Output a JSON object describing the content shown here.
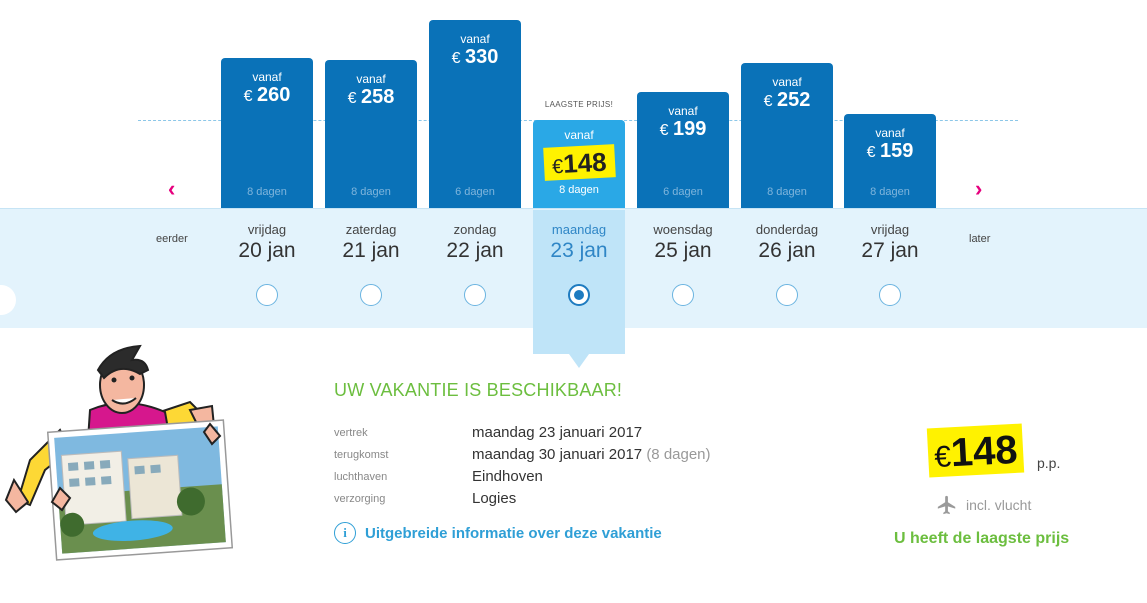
{
  "calendar": {
    "earlier_label": "eerder",
    "later_label": "later",
    "lowest_price_label": "LAAGSTE PRIJS!",
    "currency_symbol": "€",
    "days": [
      {
        "weekday": "vrijdag",
        "date": "20 jan",
        "vanaf": "vanaf",
        "price": 260,
        "duration": "8 dagen",
        "selected": false
      },
      {
        "weekday": "zaterdag",
        "date": "21 jan",
        "vanaf": "vanaf",
        "price": 258,
        "duration": "8 dagen",
        "selected": false
      },
      {
        "weekday": "zondag",
        "date": "22 jan",
        "vanaf": "vanaf",
        "price": 330,
        "duration": "6 dagen",
        "selected": false
      },
      {
        "weekday": "maandag",
        "date": "23 jan",
        "vanaf": "vanaf",
        "price": 148,
        "duration": "8 dagen",
        "selected": true
      },
      {
        "weekday": "woensdag",
        "date": "25 jan",
        "vanaf": "vanaf",
        "price": 199,
        "duration": "6 dagen",
        "selected": false
      },
      {
        "weekday": "donderdag",
        "date": "26 jan",
        "vanaf": "vanaf",
        "price": 252,
        "duration": "8 dagen",
        "selected": false
      },
      {
        "weekday": "vrijdag",
        "date": "27 jan",
        "vanaf": "vanaf",
        "price": 159,
        "duration": "8 dagen",
        "selected": false
      }
    ]
  },
  "details": {
    "title": "UW VAKANTIE IS BESCHIKBAAR!",
    "rows": [
      {
        "label": "vertrek",
        "value": "maandag 23 januari 2017",
        "extra": ""
      },
      {
        "label": "terugkomst",
        "value": "maandag 30 januari 2017",
        "extra": "(8 dagen)"
      },
      {
        "label": "luchthaven",
        "value": "Eindhoven",
        "extra": ""
      },
      {
        "label": "verzorging",
        "value": "Logies",
        "extra": ""
      }
    ],
    "info_link": "Uitgebreide informatie over deze vakantie"
  },
  "summary": {
    "currency": "€",
    "price": "148",
    "per_person": "p.p.",
    "flight_label": "incl. vlucht",
    "lowest_message": "U heeft de laagste prijs"
  },
  "colors": {
    "bar_blue": "#0a72b8",
    "selected_blue": "#2aa8e6",
    "highlight_yellow": "#fff200",
    "accent_green": "#6cbe3f",
    "arrow_pink": "#e6007e",
    "link_blue": "#2f9fd6"
  },
  "icons": {
    "prev": "chevron-left-icon",
    "next": "chevron-right-icon",
    "info": "info-circle-icon",
    "flight": "airplane-icon"
  }
}
